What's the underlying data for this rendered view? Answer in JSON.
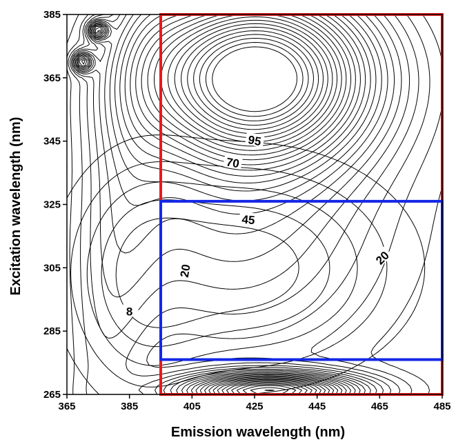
{
  "chart_data": {
    "type": "contour",
    "xlabel": "Emission wavelength (nm)",
    "ylabel": "Excitation wavelength (nm)",
    "xlim": [
      365,
      485
    ],
    "ylim": [
      265,
      385
    ],
    "xticks": [
      365,
      385,
      405,
      425,
      445,
      465,
      485
    ],
    "yticks": [
      265,
      285,
      305,
      325,
      345,
      365,
      385
    ],
    "contour_labels": [
      {
        "text": "95",
        "x": 425,
        "y": 345,
        "angle": 10
      },
      {
        "text": "70",
        "x": 418,
        "y": 338,
        "angle": 10
      },
      {
        "text": "45",
        "x": 423,
        "y": 320,
        "angle": 5
      },
      {
        "text": "20",
        "x": 403,
        "y": 304,
        "angle": -80
      },
      {
        "text": "20",
        "x": 466,
        "y": 308,
        "angle": -45
      },
      {
        "text": "8",
        "x": 385,
        "y": 291,
        "angle": 0
      }
    ],
    "regions": [
      {
        "name": "red-box",
        "color": "#e8191c",
        "x": [
          395,
          485
        ],
        "y": [
          265,
          385
        ]
      },
      {
        "name": "blue-box",
        "color": "#1428e6",
        "x": [
          395,
          485
        ],
        "y": [
          276,
          326
        ]
      }
    ],
    "peaks": [
      {
        "x": 425.5,
        "y": 366
      },
      {
        "x": 430,
        "y": 266
      }
    ],
    "line_color": "#000000",
    "grid": false
  }
}
